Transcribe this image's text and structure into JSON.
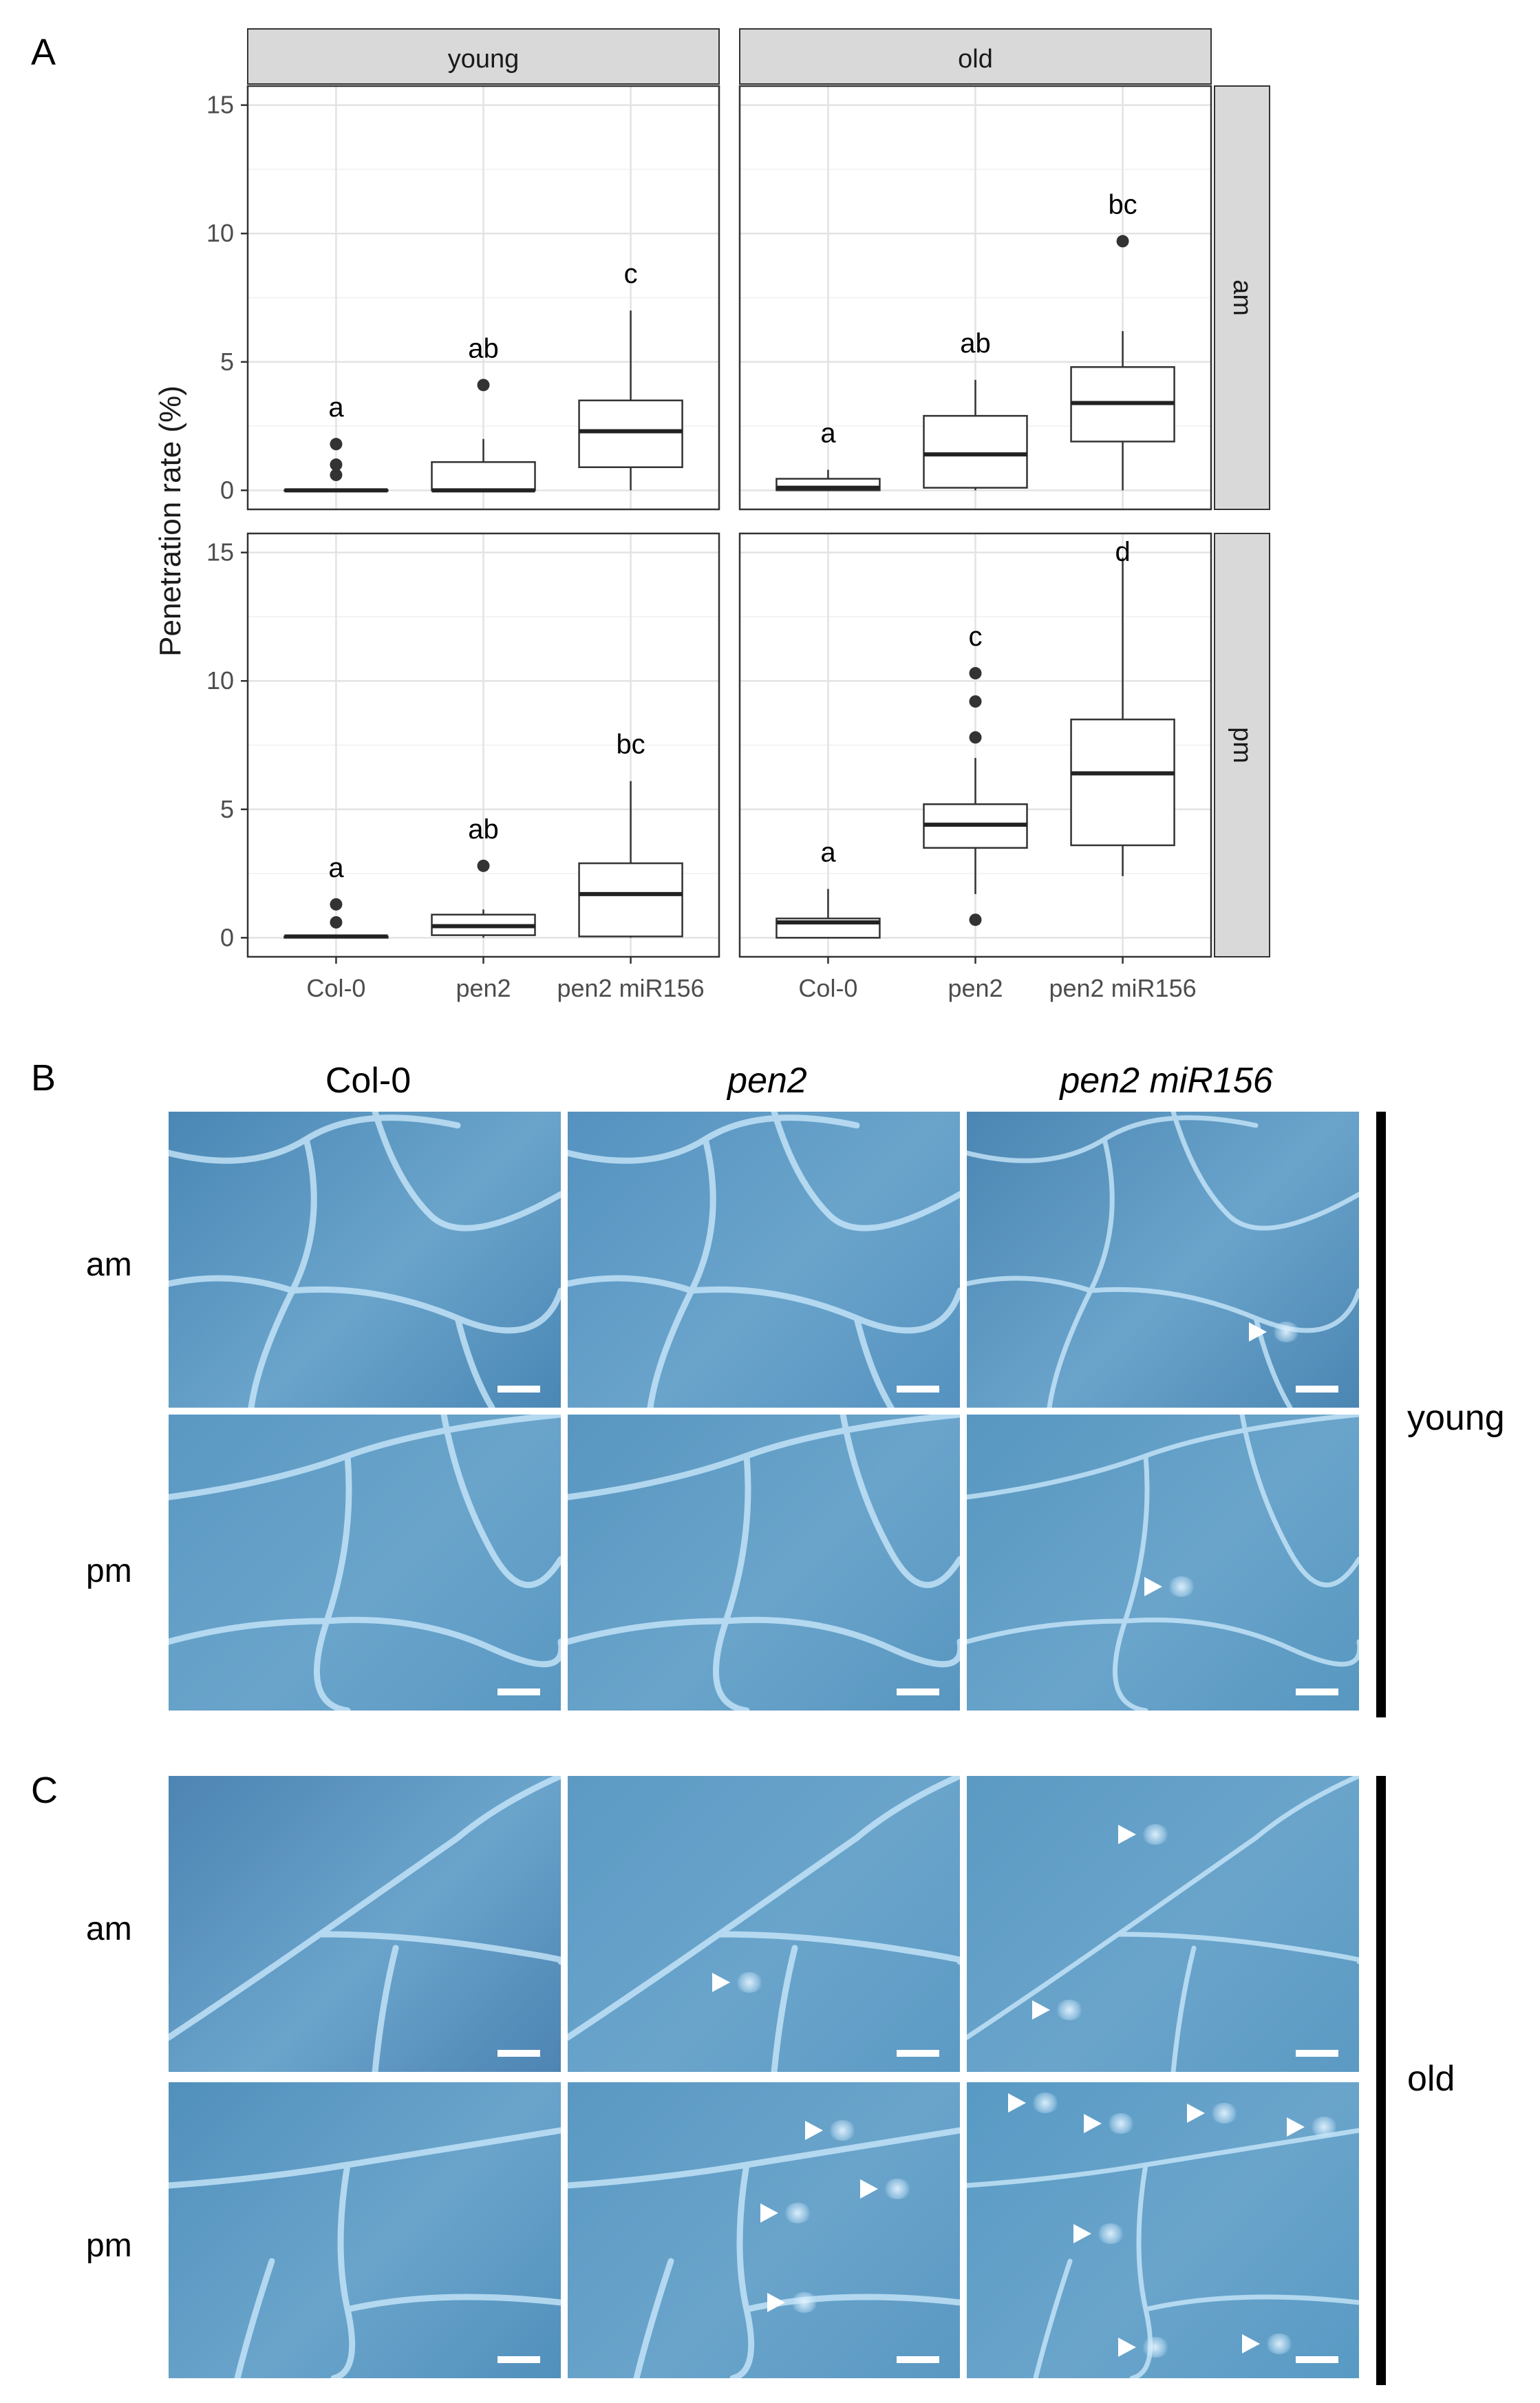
{
  "panel_labels": {
    "a": "A",
    "b": "B",
    "c": "C"
  },
  "chart_data": {
    "type": "box",
    "ylabel": "Penetration rate (%)",
    "xlabel": "",
    "categories": [
      "Col-0",
      "pen2",
      "pen2 miR156"
    ],
    "ylim": [
      0,
      15
    ],
    "yticks": [
      0,
      5,
      10,
      15
    ],
    "grid": true,
    "col_facets": [
      "young",
      "old"
    ],
    "row_facets": [
      "am",
      "pm"
    ],
    "facets": [
      {
        "col": "young",
        "row": "am",
        "boxes": [
          {
            "category": "Col-0",
            "min": 0,
            "q1": 0,
            "median": 0,
            "q3": 0,
            "max": 0,
            "outliers": [
              0.6,
              1.0,
              1.8
            ],
            "letter": "a"
          },
          {
            "category": "pen2",
            "min": 0,
            "q1": 0,
            "median": 0,
            "q3": 1.1,
            "max": 2.0,
            "outliers": [
              4.1
            ],
            "letter": "ab"
          },
          {
            "category": "pen2 miR156",
            "min": 0,
            "q1": 0.9,
            "median": 2.3,
            "q3": 3.5,
            "max": 7.0,
            "outliers": [],
            "letter": "c"
          }
        ]
      },
      {
        "col": "old",
        "row": "am",
        "boxes": [
          {
            "category": "Col-0",
            "min": 0,
            "q1": 0,
            "median": 0.1,
            "q3": 0.45,
            "max": 0.8,
            "outliers": [],
            "letter": "a"
          },
          {
            "category": "pen2",
            "min": 0,
            "q1": 0.1,
            "median": 1.4,
            "q3": 2.9,
            "max": 4.3,
            "outliers": [],
            "letter": "ab"
          },
          {
            "category": "pen2 miR156",
            "min": 0,
            "q1": 1.9,
            "median": 3.4,
            "q3": 4.8,
            "max": 6.2,
            "outliers": [
              9.7
            ],
            "letter": "bc"
          }
        ]
      },
      {
        "col": "young",
        "row": "pm",
        "boxes": [
          {
            "category": "Col-0",
            "min": 0,
            "q1": 0,
            "median": 0.05,
            "q3": 0.05,
            "max": 0.05,
            "outliers": [
              0.6,
              1.3
            ],
            "letter": "a"
          },
          {
            "category": "pen2",
            "min": 0,
            "q1": 0.1,
            "median": 0.45,
            "q3": 0.9,
            "max": 1.1,
            "outliers": [
              2.8
            ],
            "letter": "ab"
          },
          {
            "category": "pen2 miR156",
            "min": 0,
            "q1": 0.05,
            "median": 1.7,
            "q3": 2.9,
            "max": 6.1,
            "outliers": [],
            "letter": "bc"
          }
        ]
      },
      {
        "col": "old",
        "row": "pm",
        "boxes": [
          {
            "category": "Col-0",
            "min": 0,
            "q1": 0,
            "median": 0.6,
            "q3": 0.75,
            "max": 1.9,
            "outliers": [],
            "letter": "a"
          },
          {
            "category": "pen2",
            "min": 1.7,
            "q1": 3.5,
            "median": 4.4,
            "q3": 5.2,
            "max": 7.0,
            "outliers": [
              0.7,
              7.8,
              9.2,
              10.3
            ],
            "letter": "c"
          },
          {
            "category": "pen2 miR156",
            "min": 2.4,
            "q1": 3.6,
            "median": 6.4,
            "q3": 8.5,
            "max": 14.8,
            "outliers": [],
            "letter": "d"
          }
        ]
      }
    ]
  },
  "micrographs": {
    "columns": [
      "Col-0",
      "pen2",
      "pen2 miR156"
    ],
    "rows": [
      "am",
      "pm"
    ],
    "age_labels": {
      "young": "young",
      "old": "old"
    }
  }
}
